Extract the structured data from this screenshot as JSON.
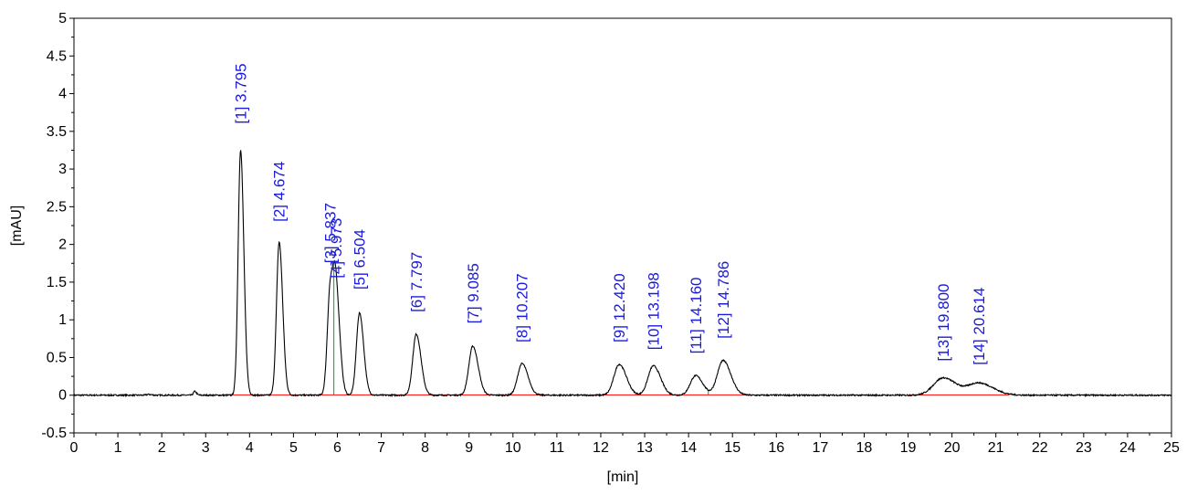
{
  "chart_data": {
    "type": "line",
    "title": "",
    "xlabel": "[min]",
    "ylabel": "[mAU]",
    "xlim": [
      0,
      25
    ],
    "ylim": [
      -0.5,
      5
    ],
    "grid": false,
    "legend": "none",
    "x_ticks": [
      0,
      1,
      2,
      3,
      4,
      5,
      6,
      7,
      8,
      9,
      10,
      11,
      12,
      13,
      14,
      15,
      16,
      17,
      18,
      19,
      20,
      21,
      22,
      23,
      24,
      25
    ],
    "y_ticks": [
      {
        "value": -0.5,
        "label": "-0.5"
      },
      {
        "value": 0,
        "label": "0"
      },
      {
        "value": 0.5,
        "label": "0.5"
      },
      {
        "value": 1,
        "label": "1"
      },
      {
        "value": 1.5,
        "label": "1.5"
      },
      {
        "value": 2,
        "label": "2"
      },
      {
        "value": 2.5,
        "label": "2.5"
      },
      {
        "value": 3,
        "label": "3"
      },
      {
        "value": 3.5,
        "label": "3.5"
      },
      {
        "value": 4,
        "label": "4"
      },
      {
        "value": 4.5,
        "label": "4.5"
      },
      {
        "value": 5,
        "label": "5"
      }
    ],
    "colors": {
      "trace": "#000000",
      "baseline": "#ff0000",
      "separator": "#00b000",
      "label": "#1a1ad9"
    },
    "series": [
      {
        "peaks": [
          {
            "rt": 3.795,
            "height": 3.25,
            "width": 0.055
          },
          {
            "rt": 4.674,
            "height": 2.03,
            "width": 0.06
          },
          {
            "rt": 5.837,
            "height": 1.4,
            "width": 0.065
          },
          {
            "rt": 5.973,
            "height": 1.22,
            "width": 0.065
          },
          {
            "rt": 6.504,
            "height": 1.09,
            "width": 0.07
          },
          {
            "rt": 7.797,
            "height": 0.81,
            "width": 0.08
          },
          {
            "rt": 9.085,
            "height": 0.65,
            "width": 0.09
          },
          {
            "rt": 10.207,
            "height": 0.42,
            "width": 0.1
          },
          {
            "rt": 12.42,
            "height": 0.41,
            "width": 0.12
          },
          {
            "rt": 13.198,
            "height": 0.39,
            "width": 0.12
          },
          {
            "rt": 14.16,
            "height": 0.26,
            "width": 0.12
          },
          {
            "rt": 14.786,
            "height": 0.46,
            "width": 0.13
          },
          {
            "rt": 19.8,
            "height": 0.23,
            "width": 0.22
          },
          {
            "rt": 20.614,
            "height": 0.16,
            "width": 0.24
          },
          {
            "rt": 2.75,
            "height": 0.05,
            "width": 0.03
          },
          {
            "rt": 1.7,
            "height": 0.01,
            "width": 0.05
          }
        ]
      }
    ],
    "annotations": [
      {
        "text": "[1]  3.795",
        "x": 3.795,
        "y": 3.6
      },
      {
        "text": "[2]  4.674",
        "x": 4.674,
        "y": 2.3
      },
      {
        "text": "[3]  5.837",
        "x": 5.837,
        "y": 1.75
      },
      {
        "text": "[4]  5.973",
        "x": 5.973,
        "y": 1.55
      },
      {
        "text": "[5]  6.504",
        "x": 6.504,
        "y": 1.4
      },
      {
        "text": "[6]  7.797",
        "x": 7.797,
        "y": 1.1
      },
      {
        "text": "[7]  9.085",
        "x": 9.085,
        "y": 0.95
      },
      {
        "text": "[8]  10.207",
        "x": 10.207,
        "y": 0.7
      },
      {
        "text": "[9]  12.420",
        "x": 12.42,
        "y": 0.7
      },
      {
        "text": "[10]  13.198",
        "x": 13.198,
        "y": 0.6
      },
      {
        "text": "[11]  14.160",
        "x": 14.16,
        "y": 0.55
      },
      {
        "text": "[12]  14.786",
        "x": 14.786,
        "y": 0.75
      },
      {
        "text": "[13]  19.800",
        "x": 19.8,
        "y": 0.45
      },
      {
        "text": "[14]  20.614",
        "x": 20.614,
        "y": 0.4
      }
    ],
    "baseline_segments": [
      [
        3.55,
        6.65
      ],
      [
        6.65,
        8.1
      ],
      [
        8.1,
        9.5
      ],
      [
        9.5,
        10.75
      ],
      [
        11.8,
        15.4
      ],
      [
        19.0,
        21.3
      ]
    ],
    "separators": [
      5.92,
      14.45
    ]
  }
}
